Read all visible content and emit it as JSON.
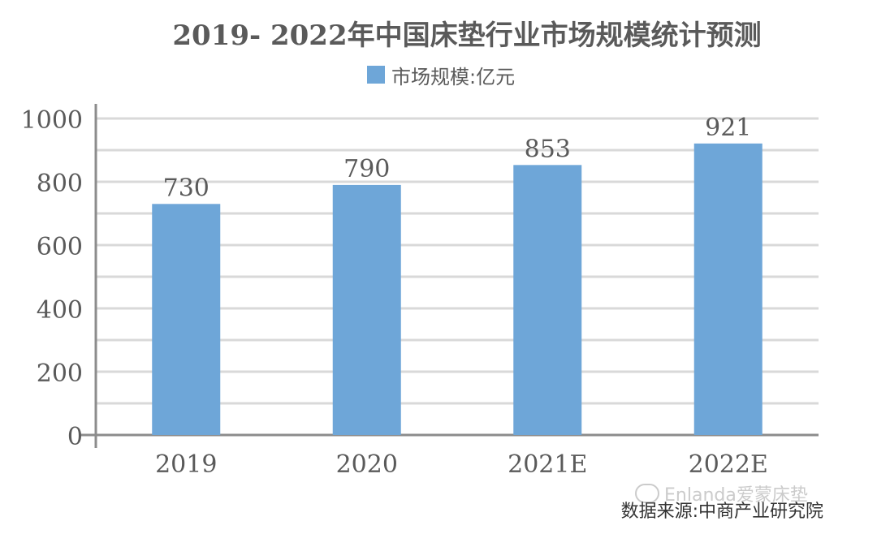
{
  "chart_data": {
    "type": "bar",
    "title": "2019- 2022年中国床垫行业市场规模统计预测",
    "categories": [
      "2019",
      "2020",
      "2021E",
      "2022E"
    ],
    "series": [
      {
        "name": "市场规模:亿元",
        "values": [
          730,
          790,
          853,
          921
        ],
        "color": "#6ea6d8"
      }
    ],
    "data_labels": [
      "730",
      "790",
      "853",
      "921"
    ],
    "ylim": [
      0,
      1000
    ],
    "yticks": [
      0,
      200,
      400,
      600,
      800,
      1000
    ],
    "minor_gridlines": true,
    "grid": true,
    "legend_position": "top-center"
  },
  "source_note": "数据来源:中商产业研究院",
  "watermark": "Enlanda爱蒙床垫",
  "colors": {
    "bar": "#6ea6d8",
    "grid": "#d9d9d9",
    "axis": "#8c8c8c",
    "text": "#5a5a5a"
  }
}
